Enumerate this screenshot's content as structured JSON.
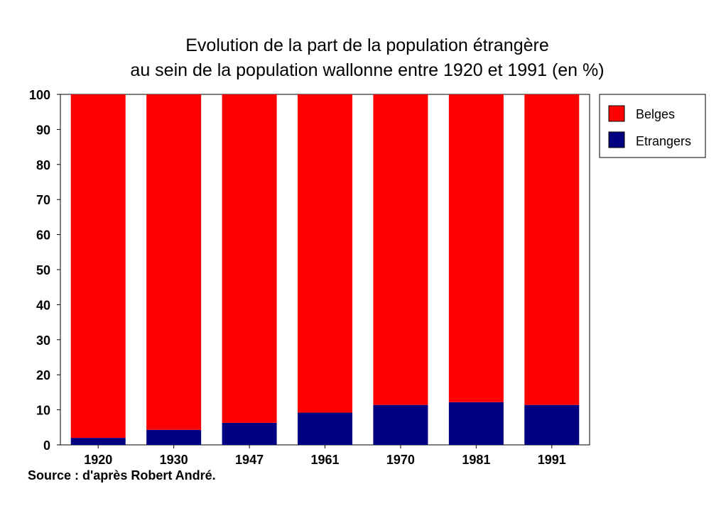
{
  "chart_data": {
    "type": "bar",
    "stacked": true,
    "title": [
      "Evolution de la part de la population étrangère",
      "au sein de la population wallonne entre 1920 et 1991 (en %)"
    ],
    "categories": [
      "1920",
      "1930",
      "1947",
      "1961",
      "1970",
      "1981",
      "1991"
    ],
    "series": [
      {
        "name": "Etrangers",
        "color": "#000080",
        "values": [
          2,
          4.3,
          6.3,
          9.2,
          11.4,
          12.2,
          11.4
        ]
      },
      {
        "name": "Belges",
        "color": "#ff0000",
        "values": [
          98,
          95.7,
          93.7,
          90.8,
          88.6,
          87.8,
          88.6
        ]
      }
    ],
    "ylim": [
      0,
      100
    ],
    "yticks": [
      "0",
      "10",
      "20",
      "30",
      "40",
      "50",
      "60",
      "70",
      "80",
      "90",
      "100"
    ],
    "legend": {
      "position": "right",
      "entries": [
        "Belges",
        "Etrangers"
      ]
    },
    "grid": false
  },
  "source": "Source : d'après Robert André."
}
